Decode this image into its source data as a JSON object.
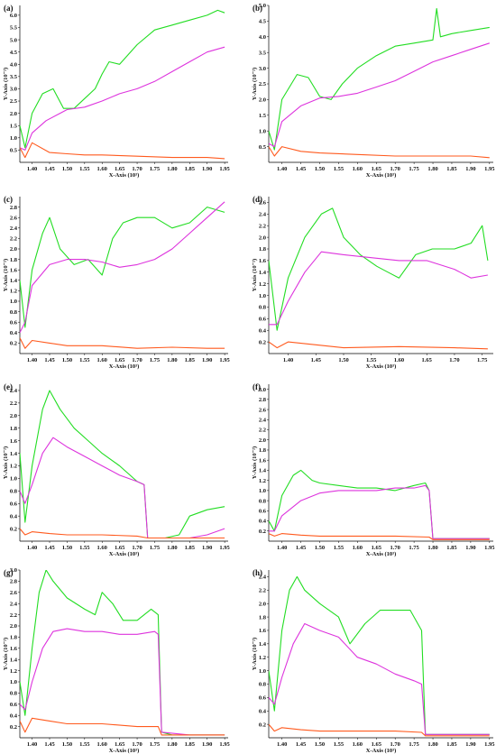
{
  "figure": {
    "xlabel": "X-Axis (10³)",
    "ylabel": "Y-Axis (10⁻²)",
    "series_colors": {
      "green": "#22dd22",
      "magenta": "#dd33dd",
      "orange": "#ff5a1e"
    }
  },
  "chart_data": [
    {
      "type": "line",
      "panel": "(a)",
      "xlim": [
        1.365,
        1.96
      ],
      "ylim": [
        0,
        6.4
      ],
      "xticks": [
        "1.40",
        "1.45",
        "1.50",
        "1.55",
        "1.60",
        "1.65",
        "1.70",
        "1.75",
        "1.80",
        "1.85",
        "1.90",
        "1.95"
      ],
      "yticks": [
        "0.5",
        "1.0",
        "1.5",
        "2.0",
        "2.5",
        "3.0",
        "3.5",
        "4.0",
        "4.5",
        "5.0",
        "5.5",
        "6.0"
      ],
      "series": [
        {
          "color": "green",
          "x": [
            1.365,
            1.38,
            1.4,
            1.43,
            1.46,
            1.49,
            1.52,
            1.55,
            1.58,
            1.6,
            1.62,
            1.65,
            1.7,
            1.75,
            1.8,
            1.85,
            1.9,
            1.93,
            1.95
          ],
          "y": [
            1.5,
            0.6,
            2.0,
            2.8,
            3.0,
            2.2,
            2.2,
            2.6,
            3.0,
            3.6,
            4.1,
            4.0,
            4.8,
            5.4,
            5.6,
            5.8,
            6.0,
            6.2,
            6.1
          ]
        },
        {
          "color": "magenta",
          "x": [
            1.365,
            1.38,
            1.4,
            1.44,
            1.48,
            1.5,
            1.55,
            1.6,
            1.65,
            1.7,
            1.75,
            1.8,
            1.85,
            1.9,
            1.95
          ],
          "y": [
            0.6,
            0.5,
            1.2,
            1.7,
            2.0,
            2.15,
            2.25,
            2.5,
            2.8,
            3.0,
            3.3,
            3.7,
            4.1,
            4.5,
            4.7
          ]
        },
        {
          "color": "orange",
          "x": [
            1.365,
            1.38,
            1.4,
            1.45,
            1.5,
            1.55,
            1.6,
            1.7,
            1.8,
            1.9,
            1.95
          ],
          "y": [
            0.6,
            0.2,
            0.8,
            0.4,
            0.35,
            0.3,
            0.3,
            0.25,
            0.2,
            0.2,
            0.15
          ]
        }
      ]
    },
    {
      "type": "line",
      "panel": "(b)",
      "xlim": [
        1.365,
        1.96
      ],
      "ylim": [
        0,
        5.0
      ],
      "xticks": [
        "1.40",
        "1.45",
        "1.50",
        "1.55",
        "1.60",
        "1.65",
        "1.70",
        "1.75",
        "1.80",
        "1.85",
        "1.90",
        "1.95"
      ],
      "yticks": [
        "0.5",
        "1.0",
        "1.5",
        "2.0",
        "2.5",
        "3.0",
        "3.5",
        "4.0",
        "4.5",
        "5.0"
      ],
      "series": [
        {
          "color": "green",
          "x": [
            1.365,
            1.38,
            1.4,
            1.44,
            1.47,
            1.5,
            1.53,
            1.56,
            1.6,
            1.65,
            1.7,
            1.75,
            1.8,
            1.81,
            1.82,
            1.85,
            1.9,
            1.95
          ],
          "y": [
            1.0,
            0.4,
            2.0,
            2.8,
            2.7,
            2.1,
            2.0,
            2.5,
            3.0,
            3.4,
            3.7,
            3.8,
            3.9,
            4.9,
            4.0,
            4.1,
            4.2,
            4.3
          ]
        },
        {
          "color": "magenta",
          "x": [
            1.365,
            1.38,
            1.4,
            1.45,
            1.5,
            1.55,
            1.6,
            1.65,
            1.7,
            1.75,
            1.8,
            1.85,
            1.9,
            1.95
          ],
          "y": [
            0.6,
            0.5,
            1.3,
            1.8,
            2.05,
            2.1,
            2.2,
            2.4,
            2.6,
            2.9,
            3.2,
            3.4,
            3.6,
            3.8
          ]
        },
        {
          "color": "orange",
          "x": [
            1.365,
            1.38,
            1.4,
            1.45,
            1.5,
            1.6,
            1.7,
            1.8,
            1.9,
            1.95
          ],
          "y": [
            0.5,
            0.2,
            0.5,
            0.35,
            0.3,
            0.25,
            0.2,
            0.2,
            0.2,
            0.15
          ]
        }
      ]
    },
    {
      "type": "line",
      "panel": "(c)",
      "xlim": [
        1.365,
        1.96
      ],
      "ylim": [
        0,
        3.0
      ],
      "xticks": [
        "1.40",
        "1.45",
        "1.50",
        "1.55",
        "1.60",
        "1.65",
        "1.70",
        "1.75",
        "1.80",
        "1.85",
        "1.90",
        "1.95"
      ],
      "yticks": [
        "0.2",
        "0.4",
        "0.6",
        "0.8",
        "1.0",
        "1.2",
        "1.4",
        "1.6",
        "1.8",
        "2.0",
        "2.2",
        "2.4",
        "2.6",
        "2.8"
      ],
      "series": [
        {
          "color": "green",
          "x": [
            1.365,
            1.38,
            1.4,
            1.43,
            1.45,
            1.48,
            1.52,
            1.56,
            1.6,
            1.63,
            1.66,
            1.7,
            1.75,
            1.8,
            1.85,
            1.9,
            1.95
          ],
          "y": [
            1.4,
            0.5,
            1.6,
            2.3,
            2.6,
            2.0,
            1.7,
            1.8,
            1.5,
            2.2,
            2.5,
            2.6,
            2.6,
            2.4,
            2.5,
            2.8,
            2.7
          ]
        },
        {
          "color": "magenta",
          "x": [
            1.365,
            1.38,
            1.4,
            1.45,
            1.5,
            1.55,
            1.6,
            1.65,
            1.7,
            1.75,
            1.8,
            1.85,
            1.9,
            1.95
          ],
          "y": [
            0.4,
            0.6,
            1.3,
            1.7,
            1.8,
            1.8,
            1.75,
            1.65,
            1.7,
            1.8,
            2.0,
            2.3,
            2.6,
            2.9
          ]
        },
        {
          "color": "orange",
          "x": [
            1.365,
            1.38,
            1.4,
            1.45,
            1.5,
            1.6,
            1.7,
            1.8,
            1.9,
            1.95
          ],
          "y": [
            0.3,
            0.1,
            0.25,
            0.2,
            0.15,
            0.15,
            0.1,
            0.12,
            0.1,
            0.1
          ]
        }
      ]
    },
    {
      "type": "line",
      "panel": "(d)",
      "xlim": [
        1.365,
        1.77
      ],
      "ylim": [
        0,
        2.7
      ],
      "xticks": [
        "1.40",
        "1.45",
        "1.50",
        "1.55",
        "1.60",
        "1.65",
        "1.70",
        "1.75"
      ],
      "yticks": [
        "0.2",
        "0.4",
        "0.6",
        "0.8",
        "1.0",
        "1.2",
        "1.4",
        "1.6",
        "1.8",
        "2.0",
        "2.2",
        "2.4",
        "2.6"
      ],
      "series": [
        {
          "color": "green",
          "x": [
            1.365,
            1.38,
            1.4,
            1.43,
            1.46,
            1.48,
            1.5,
            1.53,
            1.56,
            1.58,
            1.6,
            1.63,
            1.66,
            1.7,
            1.73,
            1.75,
            1.76
          ],
          "y": [
            1.6,
            0.4,
            1.3,
            2.0,
            2.4,
            2.5,
            2.0,
            1.7,
            1.5,
            1.4,
            1.3,
            1.7,
            1.8,
            1.8,
            1.9,
            2.2,
            1.6
          ]
        },
        {
          "color": "magenta",
          "x": [
            1.365,
            1.38,
            1.4,
            1.43,
            1.46,
            1.5,
            1.55,
            1.6,
            1.65,
            1.7,
            1.73,
            1.76
          ],
          "y": [
            0.5,
            0.5,
            0.9,
            1.4,
            1.75,
            1.7,
            1.65,
            1.6,
            1.6,
            1.45,
            1.3,
            1.35
          ]
        },
        {
          "color": "orange",
          "x": [
            1.365,
            1.38,
            1.4,
            1.45,
            1.5,
            1.6,
            1.7,
            1.76
          ],
          "y": [
            0.2,
            0.1,
            0.2,
            0.15,
            0.1,
            0.12,
            0.1,
            0.08
          ]
        }
      ]
    },
    {
      "type": "line",
      "panel": "(e)",
      "xlim": [
        1.365,
        1.96
      ],
      "ylim": [
        0,
        2.5
      ],
      "xticks": [
        "1.40",
        "1.45",
        "1.50",
        "1.55",
        "1.60",
        "1.65",
        "1.70",
        "1.75",
        "1.80",
        "1.85",
        "1.90",
        "1.95"
      ],
      "yticks": [
        "0.2",
        "0.4",
        "0.6",
        "0.8",
        "1.0",
        "1.2",
        "1.4",
        "1.6",
        "1.8",
        "2.0",
        "2.2",
        "2.4"
      ],
      "series": [
        {
          "color": "green",
          "x": [
            1.365,
            1.38,
            1.4,
            1.43,
            1.45,
            1.48,
            1.52,
            1.56,
            1.6,
            1.65,
            1.7,
            1.72,
            1.73,
            1.78,
            1.82,
            1.85,
            1.9,
            1.95
          ],
          "y": [
            1.4,
            0.3,
            1.2,
            2.1,
            2.4,
            2.1,
            1.8,
            1.6,
            1.4,
            1.2,
            0.95,
            0.9,
            0.05,
            0.05,
            0.1,
            0.4,
            0.5,
            0.55
          ]
        },
        {
          "color": "magenta",
          "x": [
            1.365,
            1.38,
            1.4,
            1.43,
            1.46,
            1.5,
            1.55,
            1.6,
            1.65,
            1.7,
            1.72,
            1.73,
            1.8,
            1.85,
            1.9,
            1.95
          ],
          "y": [
            0.8,
            0.6,
            0.9,
            1.4,
            1.65,
            1.5,
            1.35,
            1.2,
            1.05,
            0.95,
            0.9,
            0.05,
            0.05,
            0.05,
            0.1,
            0.2
          ]
        },
        {
          "color": "orange",
          "x": [
            1.365,
            1.38,
            1.4,
            1.45,
            1.5,
            1.6,
            1.7,
            1.73,
            1.8,
            1.9,
            1.95
          ],
          "y": [
            0.2,
            0.1,
            0.15,
            0.12,
            0.1,
            0.1,
            0.08,
            0.05,
            0.05,
            0.05,
            0.05
          ]
        }
      ]
    },
    {
      "type": "line",
      "panel": "(f)",
      "xlim": [
        1.365,
        1.96
      ],
      "ylim": [
        0,
        3.1
      ],
      "xticks": [
        "1.40",
        "1.45",
        "1.50",
        "1.55",
        "1.60",
        "1.65",
        "1.70",
        "1.75",
        "1.80",
        "1.85",
        "1.90",
        "1.95"
      ],
      "yticks": [
        "0.2",
        "0.4",
        "0.6",
        "0.8",
        "1.0",
        "1.2",
        "1.4",
        "1.6",
        "1.8",
        "2.0",
        "2.2",
        "2.4",
        "2.6",
        "2.8",
        "3.0"
      ],
      "series": [
        {
          "color": "green",
          "x": [
            1.365,
            1.38,
            1.4,
            1.43,
            1.45,
            1.48,
            1.5,
            1.55,
            1.6,
            1.65,
            1.7,
            1.75,
            1.78,
            1.79,
            1.8,
            1.85,
            1.9,
            1.95
          ],
          "y": [
            0.4,
            0.2,
            0.9,
            1.3,
            1.4,
            1.2,
            1.15,
            1.1,
            1.05,
            1.05,
            1.0,
            1.1,
            1.15,
            1.0,
            0.05,
            0.05,
            0.05,
            0.05
          ]
        },
        {
          "color": "magenta",
          "x": [
            1.365,
            1.38,
            1.4,
            1.45,
            1.5,
            1.55,
            1.6,
            1.65,
            1.7,
            1.75,
            1.78,
            1.79,
            1.8,
            1.9,
            1.95
          ],
          "y": [
            0.2,
            0.2,
            0.5,
            0.8,
            0.95,
            1.0,
            1.0,
            1.0,
            1.05,
            1.05,
            1.1,
            1.0,
            0.05,
            0.05,
            0.05
          ]
        },
        {
          "color": "orange",
          "x": [
            1.365,
            1.38,
            1.4,
            1.45,
            1.5,
            1.6,
            1.7,
            1.79,
            1.8,
            1.95
          ],
          "y": [
            0.15,
            0.1,
            0.15,
            0.12,
            0.1,
            0.1,
            0.1,
            0.08,
            0.03,
            0.03
          ]
        }
      ]
    },
    {
      "type": "line",
      "panel": "(g)",
      "xlim": [
        1.365,
        1.96
      ],
      "ylim": [
        0,
        3.0
      ],
      "xticks": [
        "1.40",
        "1.45",
        "1.50",
        "1.55",
        "1.60",
        "1.65",
        "1.70",
        "1.75",
        "1.80",
        "1.85",
        "1.90",
        "1.95"
      ],
      "yticks": [
        "0.2",
        "0.4",
        "0.6",
        "0.8",
        "1.0",
        "1.2",
        "1.4",
        "1.6",
        "1.8",
        "2.0",
        "2.2",
        "2.4",
        "2.6",
        "2.8",
        "3.0"
      ],
      "series": [
        {
          "color": "green",
          "x": [
            1.365,
            1.38,
            1.4,
            1.42,
            1.44,
            1.46,
            1.5,
            1.55,
            1.58,
            1.6,
            1.63,
            1.66,
            1.7,
            1.74,
            1.76,
            1.77,
            1.8,
            1.85,
            1.9,
            1.95
          ],
          "y": [
            1.0,
            0.4,
            1.6,
            2.6,
            3.0,
            2.8,
            2.5,
            2.3,
            2.2,
            2.6,
            2.4,
            2.1,
            2.1,
            2.3,
            2.2,
            0.1,
            0.05,
            0.05,
            0.05,
            0.05
          ]
        },
        {
          "color": "magenta",
          "x": [
            1.365,
            1.38,
            1.4,
            1.43,
            1.46,
            1.5,
            1.55,
            1.6,
            1.65,
            1.7,
            1.75,
            1.76,
            1.77,
            1.85,
            1.95
          ],
          "y": [
            0.6,
            0.5,
            1.0,
            1.6,
            1.9,
            1.95,
            1.9,
            1.9,
            1.85,
            1.85,
            1.9,
            1.85,
            0.1,
            0.05,
            0.05
          ]
        },
        {
          "color": "orange",
          "x": [
            1.365,
            1.38,
            1.4,
            1.45,
            1.5,
            1.6,
            1.7,
            1.76,
            1.77,
            1.85,
            1.95
          ],
          "y": [
            0.3,
            0.1,
            0.35,
            0.3,
            0.25,
            0.25,
            0.2,
            0.2,
            0.05,
            0.05,
            0.05
          ]
        }
      ]
    },
    {
      "type": "line",
      "panel": "(h)",
      "xlim": [
        1.365,
        1.96
      ],
      "ylim": [
        0,
        2.5
      ],
      "xticks": [
        "1.40",
        "1.45",
        "1.50",
        "1.55",
        "1.60",
        "1.65",
        "1.70",
        "1.75",
        "1.80",
        "1.85",
        "1.90",
        "1.95"
      ],
      "yticks": [
        "0.2",
        "0.4",
        "0.6",
        "0.8",
        "1.0",
        "1.2",
        "1.4",
        "1.6",
        "1.8",
        "2.0",
        "2.2",
        "2.4"
      ],
      "series": [
        {
          "color": "green",
          "x": [
            1.365,
            1.38,
            1.4,
            1.42,
            1.44,
            1.46,
            1.5,
            1.55,
            1.58,
            1.62,
            1.66,
            1.7,
            1.74,
            1.77,
            1.78,
            1.85,
            1.9,
            1.95
          ],
          "y": [
            1.0,
            0.4,
            1.6,
            2.2,
            2.4,
            2.2,
            2.0,
            1.8,
            1.4,
            1.7,
            1.9,
            1.9,
            1.9,
            1.6,
            0.05,
            0.05,
            0.05,
            0.05
          ]
        },
        {
          "color": "magenta",
          "x": [
            1.365,
            1.38,
            1.4,
            1.43,
            1.46,
            1.5,
            1.55,
            1.6,
            1.65,
            1.7,
            1.75,
            1.77,
            1.78,
            1.85,
            1.95
          ],
          "y": [
            0.6,
            0.5,
            0.9,
            1.4,
            1.7,
            1.6,
            1.5,
            1.2,
            1.1,
            0.95,
            0.85,
            0.8,
            0.05,
            0.05,
            0.05
          ]
        },
        {
          "color": "orange",
          "x": [
            1.365,
            1.38,
            1.4,
            1.45,
            1.5,
            1.6,
            1.7,
            1.77,
            1.78,
            1.85,
            1.95
          ],
          "y": [
            0.2,
            0.1,
            0.15,
            0.12,
            0.1,
            0.1,
            0.1,
            0.08,
            0.03,
            0.03,
            0.03
          ]
        }
      ]
    }
  ]
}
